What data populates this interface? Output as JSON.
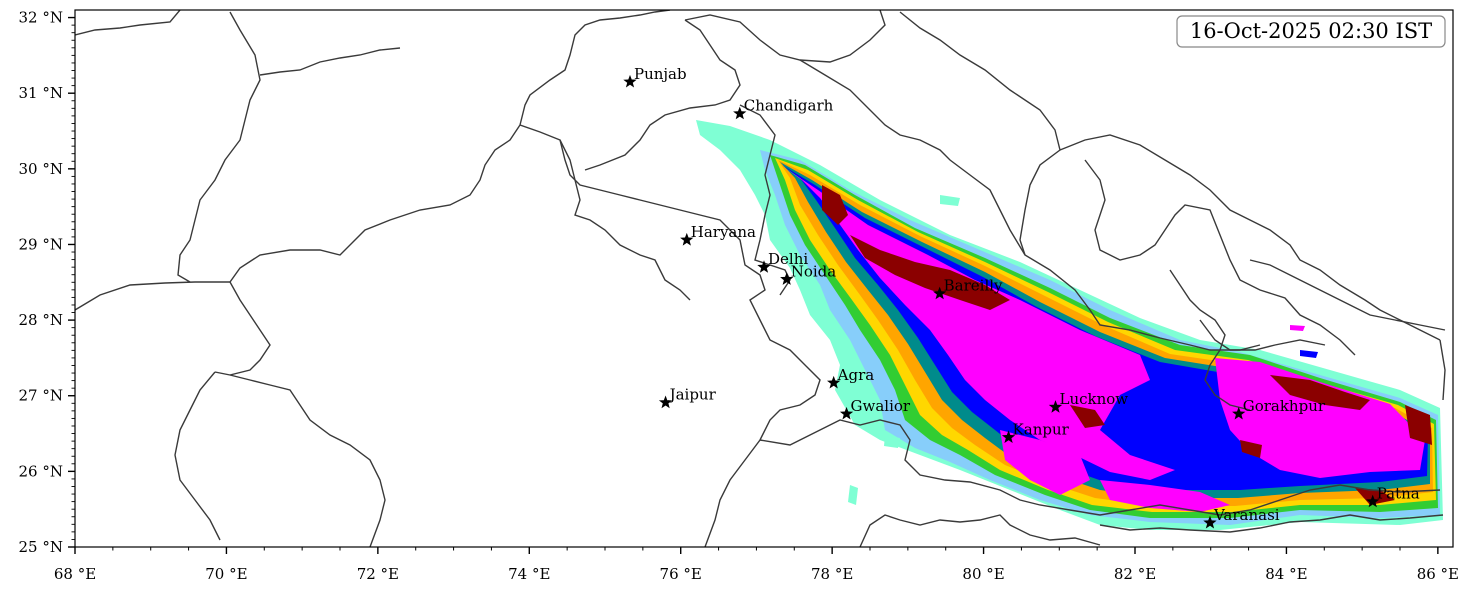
{
  "map": {
    "timestamp": "16-Oct-2025 02:30 IST",
    "lon_ticks": [
      "68 °E",
      "70 °E",
      "72 °E",
      "74 °E",
      "76 °E",
      "78 °E",
      "80 °E",
      "82 °E",
      "84 °E",
      "86 °E"
    ],
    "lat_ticks": [
      "25 °N",
      "26 °N",
      "27 °N",
      "28 °N",
      "29 °N",
      "30 °N",
      "31 °N",
      "32 °N"
    ],
    "lon_range": [
      68,
      86.2
    ],
    "lat_range": [
      25,
      32.1
    ],
    "places": [
      {
        "name": "Punjab",
        "lon": 75.33,
        "lat": 31.15
      },
      {
        "name": "Chandigarh",
        "lon": 76.78,
        "lat": 30.73
      },
      {
        "name": "Haryana",
        "lon": 76.08,
        "lat": 29.06
      },
      {
        "name": "Delhi",
        "lon": 77.1,
        "lat": 28.7
      },
      {
        "name": "Noida",
        "lon": 77.4,
        "lat": 28.54
      },
      {
        "name": "Bareilly",
        "lon": 79.42,
        "lat": 28.35
      },
      {
        "name": "Agra",
        "lon": 78.02,
        "lat": 27.17
      },
      {
        "name": "Jaipur",
        "lon": 75.8,
        "lat": 26.91
      },
      {
        "name": "Gwalior",
        "lon": 78.19,
        "lat": 26.76
      },
      {
        "name": "Lucknow",
        "lon": 80.95,
        "lat": 26.85
      },
      {
        "name": "Gorakhpur",
        "lon": 83.37,
        "lat": 26.76
      },
      {
        "name": "Kanpur",
        "lon": 80.33,
        "lat": 26.45
      },
      {
        "name": "Patna",
        "lon": 85.14,
        "lat": 25.6
      },
      {
        "name": "Varanasi",
        "lon": 82.99,
        "lat": 25.32
      }
    ],
    "rain_colors": [
      "#7fffd4",
      "#87cefa",
      "#32cd32",
      "#ffd700",
      "#ffa500",
      "#008b8b",
      "#0000ff",
      "#ff00ff",
      "#8b0000"
    ]
  }
}
